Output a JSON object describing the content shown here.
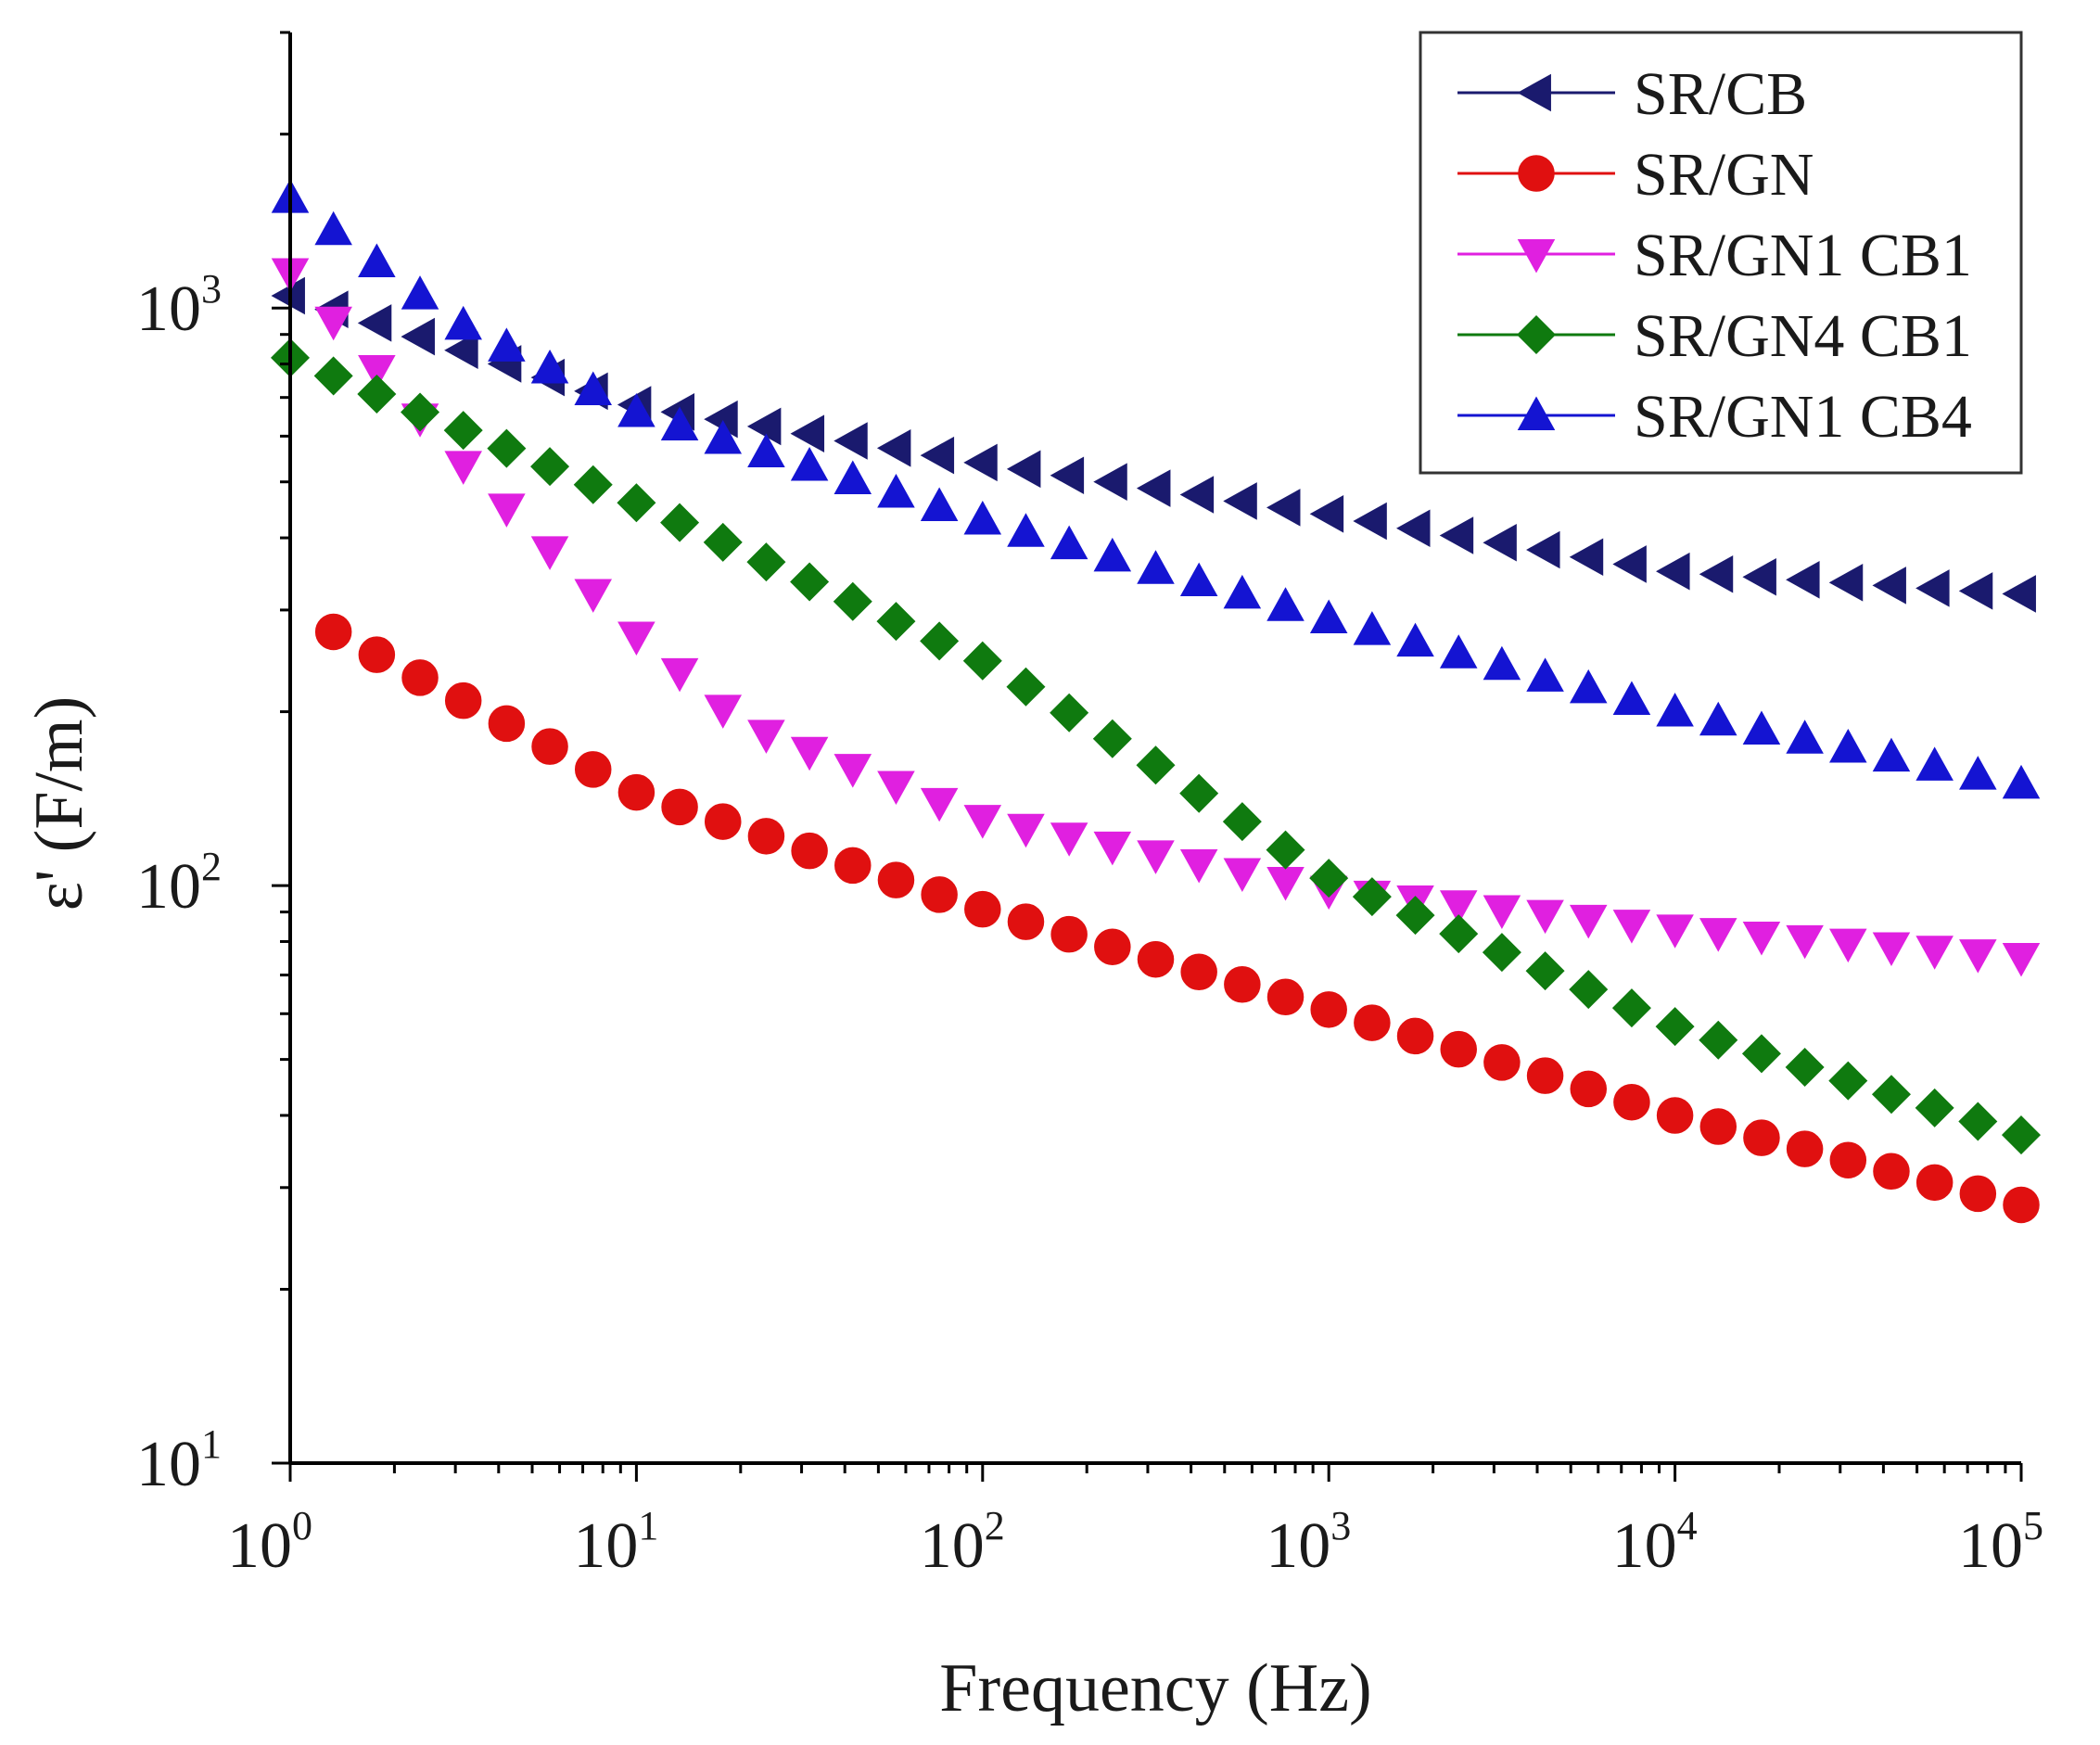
{
  "chart_data": {
    "type": "scatter",
    "xlabel": "Frequency (Hz)",
    "ylabel": "ε' (F/m)",
    "xscale": "log",
    "yscale": "log",
    "xlim": [
      1,
      100000
    ],
    "ylim": [
      10,
      3000
    ],
    "x_ticks": [
      {
        "base": "10",
        "exp": "0"
      },
      {
        "base": "10",
        "exp": "1"
      },
      {
        "base": "10",
        "exp": "2"
      },
      {
        "base": "10",
        "exp": "3"
      },
      {
        "base": "10",
        "exp": "4"
      },
      {
        "base": "10",
        "exp": "5"
      }
    ],
    "y_ticks": [
      {
        "base": "10",
        "exp": "1"
      },
      {
        "base": "10",
        "exp": "2"
      },
      {
        "base": "10",
        "exp": "3"
      }
    ],
    "legend_position": "top-right",
    "series": [
      {
        "name": "SR/CB",
        "marker": "triangle-left",
        "color": "#1a1a6e",
        "points": [
          [
            1,
            1050
          ],
          [
            10,
            680
          ],
          [
            100,
            540
          ],
          [
            1000,
            440
          ],
          [
            10000,
            350
          ],
          [
            100000,
            320
          ]
        ]
      },
      {
        "name": "SR/GN",
        "marker": "circle",
        "color": "#e01010",
        "points": [
          [
            1.26,
            280
          ],
          [
            10,
            145
          ],
          [
            100,
            91
          ],
          [
            1000,
            61
          ],
          [
            10000,
            40
          ],
          [
            100000,
            28
          ]
        ]
      },
      {
        "name": "SR/GN1 CB1",
        "marker": "triangle-down",
        "color": "#e020e0",
        "points": [
          [
            1,
            1150
          ],
          [
            3,
            550
          ],
          [
            10,
            270
          ],
          [
            20,
            190
          ],
          [
            100,
            130
          ],
          [
            1000,
            98
          ],
          [
            10000,
            84
          ],
          [
            100000,
            75
          ]
        ]
      },
      {
        "name": "SR/GN4 CB1",
        "marker": "diamond",
        "color": "#0f7a0f",
        "points": [
          [
            1,
            820
          ],
          [
            10,
            460
          ],
          [
            100,
            245
          ],
          [
            300,
            165
          ],
          [
            1000,
            103
          ],
          [
            10000,
            57
          ],
          [
            100000,
            37
          ]
        ]
      },
      {
        "name": "SR/GN1 CB4",
        "marker": "triangle-up",
        "color": "#1414d2",
        "points": [
          [
            1,
            1550
          ],
          [
            3,
            950
          ],
          [
            10,
            660
          ],
          [
            100,
            430
          ],
          [
            1000,
            290
          ],
          [
            10000,
            200
          ],
          [
            100000,
            150
          ]
        ]
      }
    ]
  }
}
